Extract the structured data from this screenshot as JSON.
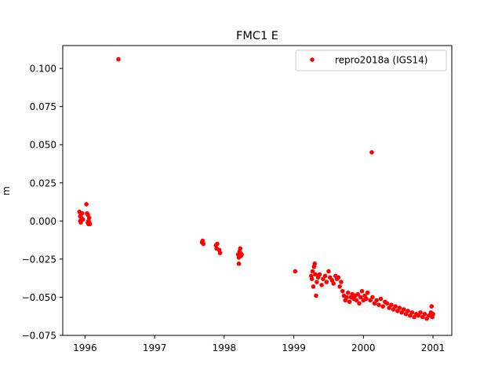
{
  "chart_data": {
    "type": "scatter",
    "title": "FMC1 E",
    "xlabel": "",
    "ylabel": "m",
    "xlim": [
      1995.68,
      2001.27
    ],
    "ylim": [
      -0.075,
      0.115
    ],
    "x_ticks": [
      1996,
      1997,
      1998,
      1999,
      2000,
      2001
    ],
    "x_tick_labels": [
      "1996",
      "1997",
      "1998",
      "1999",
      "2000",
      "2001"
    ],
    "y_ticks": [
      -0.075,
      -0.05,
      -0.025,
      0.0,
      0.025,
      0.05,
      0.075,
      0.1
    ],
    "y_tick_labels": [
      "−0.075",
      "−0.050",
      "−0.025",
      "0.000",
      "0.025",
      "0.050",
      "0.075",
      "0.100"
    ],
    "grid": false,
    "legend": {
      "position": "upper-right",
      "entries": [
        "repro2018a (IGS14)"
      ]
    },
    "series": [
      {
        "name": "repro2018a (IGS14)",
        "color": "#ff0000",
        "marker": "dot",
        "points": [
          [
            1995.92,
            0.006
          ],
          [
            1995.93,
            0.003
          ],
          [
            1995.93,
            0.0
          ],
          [
            1995.94,
            -0.001
          ],
          [
            1995.94,
            0.004
          ],
          [
            1995.95,
            0.002
          ],
          [
            1995.96,
            0.005
          ],
          [
            1995.97,
            0.001
          ],
          [
            1996.02,
            0.011
          ],
          [
            1996.03,
            0.005
          ],
          [
            1996.04,
            0.004
          ],
          [
            1996.04,
            -0.001
          ],
          [
            1996.05,
            0.0
          ],
          [
            1996.05,
            -0.002
          ],
          [
            1996.06,
            -0.001
          ],
          [
            1996.06,
            0.002
          ],
          [
            1996.07,
            -0.002
          ],
          [
            1996.48,
            0.106
          ],
          [
            1997.68,
            -0.014
          ],
          [
            1997.69,
            -0.013
          ],
          [
            1997.7,
            -0.015
          ],
          [
            1997.88,
            -0.016
          ],
          [
            1997.89,
            -0.018
          ],
          [
            1997.9,
            -0.015
          ],
          [
            1997.93,
            -0.019
          ],
          [
            1997.94,
            -0.021
          ],
          [
            1998.2,
            -0.022
          ],
          [
            1998.21,
            -0.024
          ],
          [
            1998.21,
            -0.028
          ],
          [
            1998.22,
            -0.02
          ],
          [
            1998.23,
            -0.021
          ],
          [
            1998.23,
            -0.018
          ],
          [
            1998.24,
            -0.023
          ],
          [
            1998.25,
            -0.022
          ],
          [
            1999.02,
            -0.033
          ],
          [
            1999.25,
            -0.036
          ],
          [
            1999.26,
            -0.038
          ],
          [
            1999.27,
            -0.033
          ],
          [
            1999.28,
            -0.043
          ],
          [
            1999.29,
            -0.03
          ],
          [
            1999.3,
            -0.028
          ],
          [
            1999.31,
            -0.035
          ],
          [
            1999.32,
            -0.049
          ],
          [
            1999.33,
            -0.04
          ],
          [
            1999.35,
            -0.037
          ],
          [
            1999.37,
            -0.035
          ],
          [
            1999.4,
            -0.042
          ],
          [
            1999.42,
            -0.038
          ],
          [
            1999.45,
            -0.036
          ],
          [
            1999.47,
            -0.04
          ],
          [
            1999.5,
            -0.033
          ],
          [
            1999.52,
            -0.037
          ],
          [
            1999.55,
            -0.039
          ],
          [
            1999.57,
            -0.041
          ],
          [
            1999.6,
            -0.036
          ],
          [
            1999.62,
            -0.038
          ],
          [
            1999.64,
            -0.037
          ],
          [
            1999.66,
            -0.043
          ],
          [
            1999.68,
            -0.04
          ],
          [
            1999.7,
            -0.046
          ],
          [
            1999.72,
            -0.049
          ],
          [
            1999.74,
            -0.052
          ],
          [
            1999.76,
            -0.05
          ],
          [
            1999.78,
            -0.047
          ],
          [
            1999.8,
            -0.053
          ],
          [
            1999.82,
            -0.05
          ],
          [
            1999.84,
            -0.048
          ],
          [
            1999.86,
            -0.051
          ],
          [
            1999.88,
            -0.049
          ],
          [
            1999.9,
            -0.052
          ],
          [
            1999.92,
            -0.048
          ],
          [
            1999.94,
            -0.054
          ],
          [
            1999.96,
            -0.05
          ],
          [
            1999.98,
            -0.046
          ],
          [
            2000.0,
            -0.052
          ],
          [
            2000.02,
            -0.049
          ],
          [
            2000.04,
            -0.051
          ],
          [
            2000.06,
            -0.047
          ],
          [
            2000.12,
            0.045
          ],
          [
            2000.1,
            -0.052
          ],
          [
            2000.13,
            -0.05
          ],
          [
            2000.16,
            -0.054
          ],
          [
            2000.19,
            -0.052
          ],
          [
            2000.22,
            -0.055
          ],
          [
            2000.25,
            -0.051
          ],
          [
            2000.28,
            -0.056
          ],
          [
            2000.31,
            -0.053
          ],
          [
            2000.34,
            -0.054
          ],
          [
            2000.37,
            -0.057
          ],
          [
            2000.4,
            -0.055
          ],
          [
            2000.43,
            -0.058
          ],
          [
            2000.46,
            -0.056
          ],
          [
            2000.49,
            -0.059
          ],
          [
            2000.52,
            -0.057
          ],
          [
            2000.55,
            -0.06
          ],
          [
            2000.58,
            -0.058
          ],
          [
            2000.61,
            -0.061
          ],
          [
            2000.64,
            -0.059
          ],
          [
            2000.67,
            -0.062
          ],
          [
            2000.7,
            -0.06
          ],
          [
            2000.73,
            -0.063
          ],
          [
            2000.76,
            -0.061
          ],
          [
            2000.79,
            -0.062
          ],
          [
            2000.82,
            -0.06
          ],
          [
            2000.85,
            -0.063
          ],
          [
            2000.88,
            -0.061
          ],
          [
            2000.91,
            -0.064
          ],
          [
            2000.94,
            -0.062
          ],
          [
            2000.97,
            -0.06
          ],
          [
            2000.98,
            -0.056
          ],
          [
            2000.99,
            -0.063
          ],
          [
            2001.0,
            -0.061
          ]
        ]
      }
    ]
  }
}
